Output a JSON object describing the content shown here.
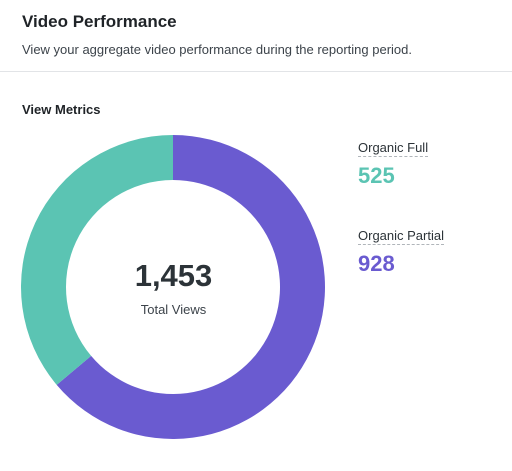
{
  "header": {
    "title": "Video Performance",
    "subtitle": "View your aggregate video performance during the reporting period."
  },
  "section": {
    "title": "View Metrics"
  },
  "chart_data": {
    "type": "pie",
    "series": [
      {
        "name": "Organic Full",
        "value": 525,
        "color": "#5bc4b3"
      },
      {
        "name": "Organic Partial",
        "value": 928,
        "color": "#6a5bd0"
      }
    ],
    "total_value": "1,453",
    "total_label": "Total Views"
  },
  "legend": [
    {
      "label": "Organic Full",
      "value": "525",
      "color": "#5bc4b3"
    },
    {
      "label": "Organic Partial",
      "value": "928",
      "color": "#6a5bd0"
    }
  ]
}
